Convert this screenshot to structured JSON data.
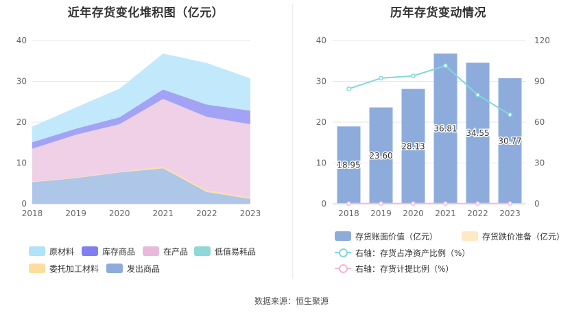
{
  "left_chart": {
    "title": "近年存货变化堆积图（亿元）",
    "legend": [
      "原材料",
      "库存商品",
      "在产品",
      "低值易耗品",
      "委托加工材料",
      "发出商品"
    ]
  },
  "right_chart": {
    "title": "历年存货变动情况",
    "legend": {
      "book_value": "存货账面价值（亿元）",
      "impairment": "存货跌价准备（亿元）",
      "ratio_assets": "右轴：存货占净资产比例（%）",
      "ratio_provision": "右轴：存货计提比例（%）"
    }
  },
  "source": "数据来源：恒生聚源",
  "chart_data": [
    {
      "type": "area",
      "stacked": true,
      "title": "近年存货变化堆积图（亿元）",
      "x": [
        "2018",
        "2019",
        "2020",
        "2021",
        "2022",
        "2023"
      ],
      "ylim": [
        0,
        40
      ],
      "yticks": [
        0,
        10,
        20,
        30,
        40
      ],
      "legend_position": "bottom",
      "series": [
        {
          "name": "发出商品",
          "color": "#aec6e8",
          "values": [
            5.3,
            6.3,
            7.7,
            8.7,
            2.9,
            1.2
          ]
        },
        {
          "name": "委托加工材料",
          "color": "#fde0a4",
          "values": [
            0.1,
            0.1,
            0.1,
            0.4,
            0.4,
            0.3
          ]
        },
        {
          "name": "低值易耗品",
          "color": "#8ed8d8",
          "values": [
            0,
            0,
            0,
            0,
            0,
            0
          ]
        },
        {
          "name": "在产品",
          "color": "#efd0e6",
          "values": [
            8.1,
            10.5,
            11.7,
            16.6,
            18.0,
            18.0
          ]
        },
        {
          "name": "库存商品",
          "color": "#a3a3f5",
          "values": [
            1.6,
            1.5,
            1.7,
            2.3,
            3.0,
            3.3
          ]
        },
        {
          "name": "原材料",
          "color": "#c2e8fb",
          "values": [
            3.8,
            5.2,
            7.0,
            8.8,
            10.2,
            7.9
          ]
        }
      ]
    },
    {
      "type": "bar",
      "title": "历年存货变动情况",
      "categories": [
        "2018",
        "2019",
        "2020",
        "2021",
        "2022",
        "2023"
      ],
      "ylim": [
        0,
        40
      ],
      "yticks": [
        0,
        10,
        20,
        30,
        40
      ],
      "y2lim": [
        0,
        120
      ],
      "y2ticks": [
        0,
        30,
        60,
        90,
        120
      ],
      "legend_position": "bottom",
      "series": [
        {
          "name": "存货账面价值（亿元）",
          "axis": "left",
          "kind": "bar",
          "color": "#8eacdb",
          "values": [
            18.95,
            23.6,
            28.13,
            36.81,
            34.55,
            30.77
          ],
          "labels": [
            "18.95",
            "23.60",
            "28.13",
            "36.81",
            "34.55",
            "30.77"
          ]
        },
        {
          "name": "存货跌价准备（亿元）",
          "axis": "left",
          "kind": "bar",
          "color": "#fde9c4",
          "values": [
            0.05,
            0.05,
            0.05,
            0.05,
            0.05,
            0.05
          ]
        },
        {
          "name": "右轴：存货占净资产比例（%）",
          "axis": "right",
          "kind": "line",
          "color": "#80d8dc",
          "values": [
            84.5,
            92.3,
            94.0,
            101.5,
            80.0,
            65.5
          ]
        },
        {
          "name": "右轴：存货计提比例（%）",
          "axis": "right",
          "kind": "line",
          "color": "#f2b8dc",
          "values": [
            0.2,
            0.2,
            0.2,
            0.2,
            0.2,
            0.2
          ]
        }
      ]
    }
  ]
}
